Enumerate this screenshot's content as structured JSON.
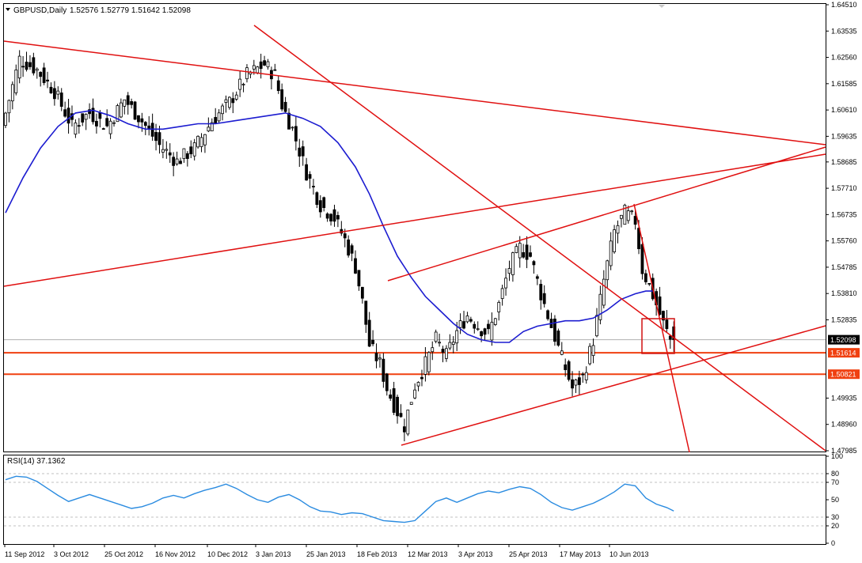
{
  "header": {
    "symbol": "GBPUSD,Daily",
    "ohlc": "1.52576 1.52779 1.51642 1.52098",
    "rsi_label": "RSI(14) 37.1362"
  },
  "colors": {
    "bull_candle": "#ffffff",
    "bear_candle": "#000000",
    "moving_average": "#1c1cd0",
    "trendline": "#e01010",
    "support_line": "#f04010",
    "rsi_line": "#2a8be0",
    "price_badge": "#000000",
    "support_badge": "#f04010"
  },
  "chart_data": [
    {
      "type": "candlestick",
      "title": "GBPUSD,Daily",
      "x_labels": [
        "11 Sep 2012",
        "3 Oct 2012",
        "25 Oct 2012",
        "16 Nov 2012",
        "10 Dec 2012",
        "3 Jan 2013",
        "25 Jan 2013",
        "18 Feb 2013",
        "12 Mar 2013",
        "3 Apr 2013",
        "25 Apr 2013",
        "17 May 2013",
        "10 Jun 2013"
      ],
      "y_ticks": [
        1.6451,
        1.63535,
        1.6256,
        1.61585,
        1.6061,
        1.59635,
        1.58685,
        1.5771,
        1.56735,
        1.5576,
        1.54785,
        1.5381,
        1.52835,
        1.49935,
        1.4896,
        1.47985
      ],
      "ylim": [
        1.47985,
        1.6451
      ],
      "current_price": 1.52098,
      "current_price_label": "1.52098",
      "support_levels": [
        {
          "value": 1.51614,
          "label": "1.51614"
        },
        {
          "value": 1.50821,
          "label": "1.50821"
        }
      ],
      "price_path": [
        [
          0,
          1.6
        ],
        [
          5,
          1.625
        ],
        [
          10,
          1.621
        ],
        [
          15,
          1.613
        ],
        [
          20,
          1.6
        ],
        [
          25,
          1.605
        ],
        [
          30,
          1.6
        ],
        [
          35,
          1.61
        ],
        [
          40,
          1.602
        ],
        [
          45,
          1.593
        ],
        [
          50,
          1.587
        ],
        [
          55,
          1.592
        ],
        [
          60,
          1.602
        ],
        [
          65,
          1.609
        ],
        [
          70,
          1.619
        ],
        [
          75,
          1.623
        ],
        [
          78,
          1.619
        ],
        [
          80,
          1.608
        ],
        [
          83,
          1.599
        ],
        [
          87,
          1.583
        ],
        [
          91,
          1.571
        ],
        [
          95,
          1.566
        ],
        [
          98,
          1.558
        ],
        [
          101,
          1.548
        ],
        [
          103,
          1.535
        ],
        [
          105,
          1.519
        ],
        [
          108,
          1.512
        ],
        [
          110,
          1.503
        ],
        [
          112,
          1.497
        ],
        [
          115,
          1.489
        ],
        [
          118,
          1.504
        ],
        [
          121,
          1.512
        ],
        [
          124,
          1.521
        ],
        [
          127,
          1.515
        ],
        [
          130,
          1.524
        ],
        [
          133,
          1.53
        ],
        [
          136,
          1.526
        ],
        [
          139,
          1.523
        ],
        [
          142,
          1.534
        ],
        [
          145,
          1.548
        ],
        [
          148,
          1.555
        ],
        [
          151,
          1.552
        ],
        [
          154,
          1.538
        ],
        [
          157,
          1.526
        ],
        [
          160,
          1.514
        ],
        [
          163,
          1.503
        ],
        [
          166,
          1.507
        ],
        [
          169,
          1.521
        ],
        [
          172,
          1.543
        ],
        [
          175,
          1.561
        ],
        [
          178,
          1.568
        ],
        [
          181,
          1.565
        ],
        [
          183,
          1.547
        ],
        [
          185,
          1.541
        ],
        [
          187,
          1.534
        ],
        [
          189,
          1.527
        ],
        [
          191,
          1.521
        ]
      ],
      "moving_average": [
        [
          0,
          1.568
        ],
        [
          5,
          1.581
        ],
        [
          10,
          1.592
        ],
        [
          15,
          1.6
        ],
        [
          20,
          1.605
        ],
        [
          25,
          1.606
        ],
        [
          30,
          1.604
        ],
        [
          35,
          1.601
        ],
        [
          40,
          1.599
        ],
        [
          45,
          1.599
        ],
        [
          50,
          1.6
        ],
        [
          55,
          1.601
        ],
        [
          60,
          1.601
        ],
        [
          65,
          1.602
        ],
        [
          70,
          1.603
        ],
        [
          75,
          1.604
        ],
        [
          80,
          1.605
        ],
        [
          85,
          1.603
        ],
        [
          90,
          1.6
        ],
        [
          95,
          1.594
        ],
        [
          100,
          1.585
        ],
        [
          104,
          1.575
        ],
        [
          108,
          1.563
        ],
        [
          112,
          1.552
        ],
        [
          116,
          1.544
        ],
        [
          120,
          1.537
        ],
        [
          124,
          1.532
        ],
        [
          128,
          1.527
        ],
        [
          132,
          1.523
        ],
        [
          136,
          1.521
        ],
        [
          140,
          1.52
        ],
        [
          144,
          1.52
        ],
        [
          148,
          1.524
        ],
        [
          152,
          1.526
        ],
        [
          156,
          1.527
        ],
        [
          160,
          1.528
        ],
        [
          164,
          1.528
        ],
        [
          168,
          1.529
        ],
        [
          172,
          1.532
        ],
        [
          176,
          1.536
        ],
        [
          180,
          1.538
        ],
        [
          183,
          1.539
        ],
        [
          185,
          1.539
        ]
      ]
    },
    {
      "type": "line",
      "title": "RSI(14) 37.1362",
      "y_ticks": [
        100,
        80,
        70,
        50,
        30,
        20,
        0
      ],
      "ylim": [
        0,
        100
      ],
      "series": [
        {
          "name": "RSI(14)",
          "values": [
            [
              0,
              73
            ],
            [
              3,
              77
            ],
            [
              6,
              76
            ],
            [
              9,
              71
            ],
            [
              12,
              63
            ],
            [
              15,
              55
            ],
            [
              18,
              48
            ],
            [
              21,
              52
            ],
            [
              24,
              56
            ],
            [
              27,
              52
            ],
            [
              30,
              48
            ],
            [
              33,
              44
            ],
            [
              36,
              40
            ],
            [
              39,
              42
            ],
            [
              42,
              46
            ],
            [
              45,
              52
            ],
            [
              48,
              55
            ],
            [
              51,
              52
            ],
            [
              54,
              57
            ],
            [
              57,
              61
            ],
            [
              60,
              64
            ],
            [
              63,
              68
            ],
            [
              66,
              63
            ],
            [
              69,
              56
            ],
            [
              72,
              50
            ],
            [
              75,
              47
            ],
            [
              78,
              53
            ],
            [
              81,
              56
            ],
            [
              84,
              50
            ],
            [
              87,
              42
            ],
            [
              90,
              37
            ],
            [
              93,
              36
            ],
            [
              96,
              33
            ],
            [
              99,
              35
            ],
            [
              102,
              34
            ],
            [
              105,
              30
            ],
            [
              108,
              26
            ],
            [
              111,
              25
            ],
            [
              114,
              24
            ],
            [
              117,
              26
            ],
            [
              120,
              37
            ],
            [
              123,
              48
            ],
            [
              126,
              52
            ],
            [
              129,
              47
            ],
            [
              132,
              52
            ],
            [
              135,
              57
            ],
            [
              138,
              60
            ],
            [
              141,
              58
            ],
            [
              144,
              62
            ],
            [
              147,
              65
            ],
            [
              150,
              63
            ],
            [
              153,
              56
            ],
            [
              156,
              47
            ],
            [
              159,
              41
            ],
            [
              162,
              38
            ],
            [
              165,
              42
            ],
            [
              168,
              46
            ],
            [
              171,
              52
            ],
            [
              174,
              59
            ],
            [
              177,
              68
            ],
            [
              180,
              66
            ],
            [
              183,
              52
            ],
            [
              186,
              45
            ],
            [
              189,
              41
            ],
            [
              191,
              37
            ]
          ]
        }
      ]
    }
  ]
}
